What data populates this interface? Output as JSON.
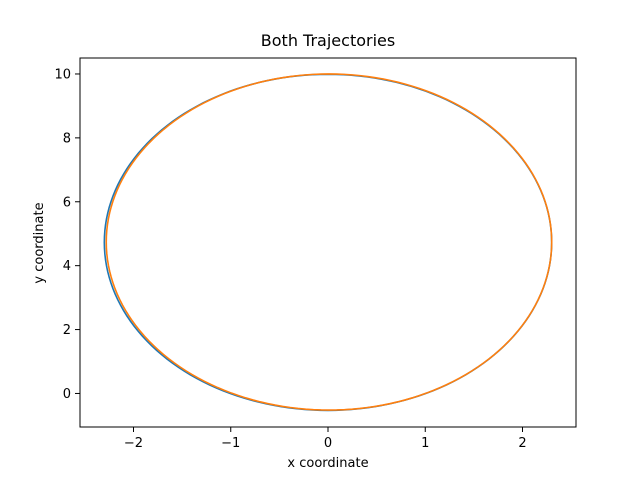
{
  "chart_data": {
    "type": "line",
    "title": "Both Trajectories",
    "xlabel": "x coordinate",
    "ylabel": "y coordinate",
    "xlim": [
      -2.55,
      2.55
    ],
    "ylim": [
      -1.05,
      10.5
    ],
    "xticks": [
      -2,
      -1,
      0,
      1,
      2
    ],
    "yticks": [
      0,
      2,
      4,
      6,
      8,
      10
    ],
    "xtick_labels": [
      "−2",
      "−1",
      "0",
      "1",
      "2"
    ],
    "ytick_labels": [
      "0",
      "2",
      "4",
      "6",
      "8",
      "10"
    ],
    "grid": false,
    "legend": "none",
    "colors": [
      "#1f77b4",
      "#ff7f0e"
    ],
    "series": [
      {
        "shape": "ellipse",
        "center": [
          0,
          4.73
        ],
        "semi_axes": [
          2.3,
          5.26
        ],
        "samples": 180
      },
      {
        "shape": "ellipse",
        "center": [
          0.01,
          4.74
        ],
        "semi_axes": [
          2.29,
          5.26
        ],
        "samples": 180
      }
    ]
  }
}
